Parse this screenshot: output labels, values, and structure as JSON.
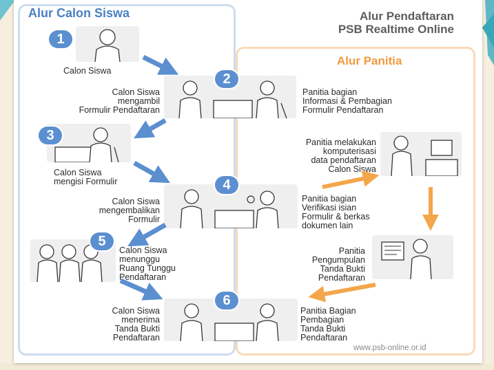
{
  "title": {
    "line1": "Alur Pendaftaran",
    "line2": "PSB Realtime Online"
  },
  "left_panel": {
    "heading": "Alur Calon Siswa"
  },
  "right_panel": {
    "heading": "Alur Panitia"
  },
  "steps": {
    "s1": {
      "number": "1",
      "label": "Calon Siswa"
    },
    "s2": {
      "number": "2",
      "student": [
        "Calon Siswa",
        "mengambil",
        "Formulir Pendaftaran"
      ],
      "committee": [
        "Panitia bagian",
        "Informasi & Pembagian",
        "Formulir Pendaftaran"
      ]
    },
    "s3": {
      "number": "3",
      "label": [
        "Calon Siswa",
        "mengisi Formulir"
      ]
    },
    "s4": {
      "number": "4",
      "student": [
        "Calon Siswa",
        "mengembalikan",
        "Formulir"
      ],
      "committee": [
        "Panitia bagian",
        "Verifikasi isian",
        "Formulir & berkas",
        "dokumen lain"
      ]
    },
    "s5": {
      "number": "5",
      "label": [
        "Calon Siswa",
        "menunggu",
        "Ruang Tunggu",
        "Pendaftaran"
      ]
    },
    "s6": {
      "number": "6",
      "student": [
        "Calon Siswa",
        "menerima",
        "Tanda Bukti",
        "Pendaftaran"
      ],
      "committee": [
        "Panitia Bagian",
        "Pembagian",
        "Tanda Bukti",
        "Pendaftaran"
      ]
    }
  },
  "committee_steps": {
    "computerize": [
      "Panitia melakukan",
      "komputerisasi",
      "data pendaftaran",
      "Calon Siswa"
    ],
    "collect": [
      "Panitia",
      "Pengumpulan",
      "Tanda Bukti",
      "Pendaftaran"
    ]
  },
  "footer": {
    "url": "www.psb-online.or.id"
  },
  "colors": {
    "student_flow": "#5b8fd0",
    "committee_flow": "#f4a64a",
    "left_border": "#cddcf0",
    "right_border": "#f8d9b7"
  },
  "icons": {
    "person": "person-icon",
    "desk": "desk-icon",
    "computer": "computer-icon",
    "document": "document-icon"
  }
}
